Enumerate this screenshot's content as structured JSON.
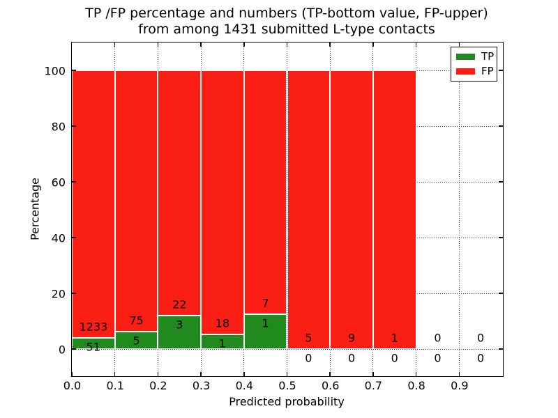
{
  "title": {
    "line1": "TP /FP percentage and numbers (TP-bottom value, FP-upper)",
    "line2": "from among 1431 submitted L-type contacts"
  },
  "axes": {
    "xlabel": "Predicted probability",
    "ylabel": "Percentage",
    "x_ticks": [
      "0.0",
      "0.1",
      "0.2",
      "0.3",
      "0.4",
      "0.5",
      "0.6",
      "0.7",
      "0.8",
      "0.9"
    ],
    "y_ticks": [
      "0",
      "20",
      "40",
      "60",
      "80",
      "100"
    ]
  },
  "legend": {
    "items": [
      {
        "label": "TP",
        "color": "#218a1e"
      },
      {
        "label": "FP",
        "color": "#fb1e14"
      }
    ]
  },
  "chart_data": {
    "type": "bar",
    "subtype": "stacked-percentage",
    "title": "TP /FP percentage and numbers (TP-bottom value, FP-upper) from among 1431 submitted L-type contacts",
    "xlabel": "Predicted probability",
    "ylabel": "Percentage",
    "xlim": [
      0.0,
      1.0
    ],
    "ylim": [
      -10,
      110
    ],
    "grid": true,
    "legend_position": "upper right",
    "total_contacts": 1431,
    "bin_edges": [
      0.0,
      0.1,
      0.2,
      0.3,
      0.4,
      0.5,
      0.6,
      0.7,
      0.8,
      0.9,
      1.0
    ],
    "series": [
      {
        "name": "TP",
        "color": "#218a1e",
        "counts": [
          51,
          5,
          3,
          1,
          1,
          0,
          0,
          0,
          0,
          0
        ],
        "pct": [
          3.97,
          6.25,
          12.0,
          5.26,
          12.5,
          0,
          0,
          0,
          0,
          0
        ]
      },
      {
        "name": "FP",
        "color": "#fb1e14",
        "counts": [
          1233,
          75,
          22,
          18,
          7,
          5,
          9,
          1,
          0,
          0
        ],
        "pct": [
          96.03,
          93.75,
          88.0,
          94.74,
          87.5,
          100,
          100,
          100,
          0,
          0
        ]
      }
    ]
  }
}
